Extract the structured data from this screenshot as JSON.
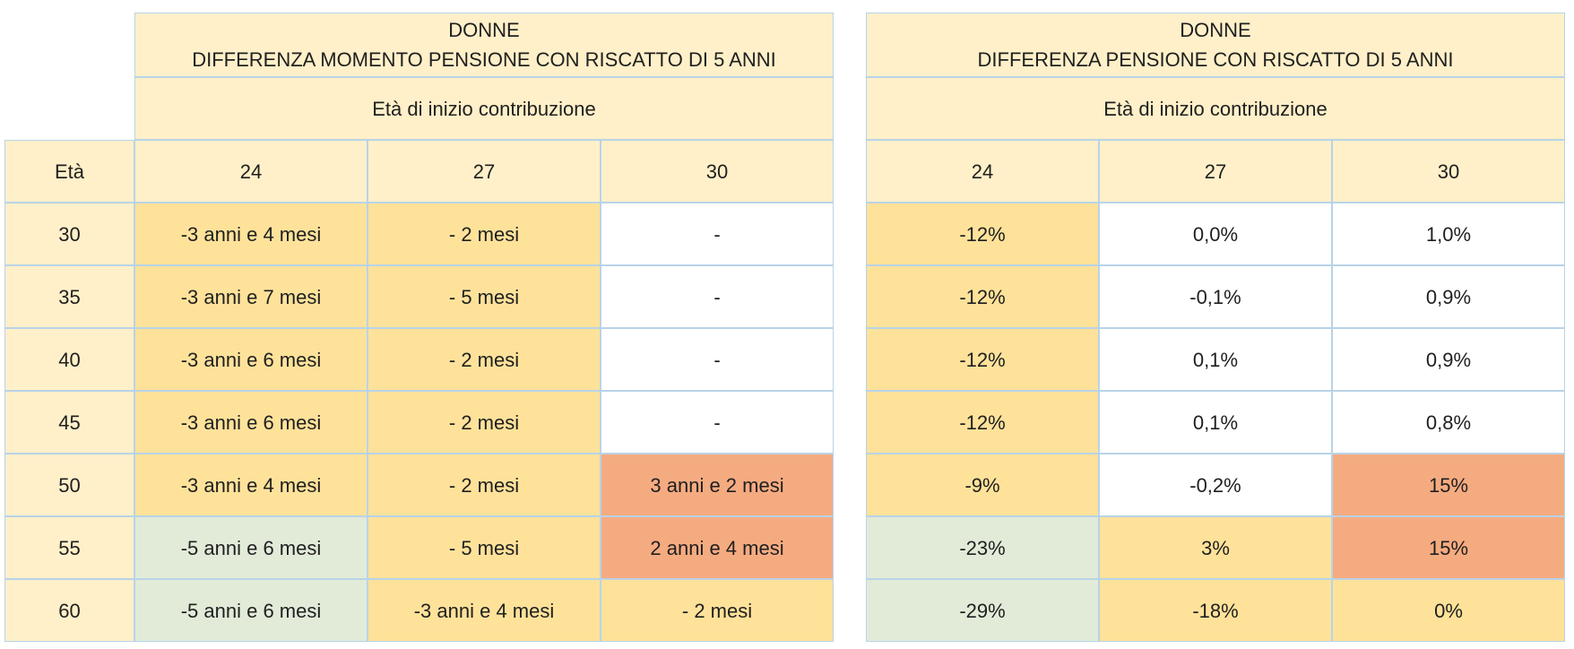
{
  "left_table": {
    "title": "DONNE\nDIFFERENZA MOMENTO PENSIONE CON RISCATTO DI 5 ANNI",
    "subtitle": "Età di inizio contribuzione",
    "age_header": "Età",
    "columns": [
      "24",
      "27",
      "30"
    ],
    "rows": [
      {
        "age": "30",
        "cells": [
          {
            "value": "-3 anni e 4 mesi",
            "color": "yellow"
          },
          {
            "value": "- 2 mesi",
            "color": "yellow"
          },
          {
            "value": "-",
            "color": "white"
          }
        ]
      },
      {
        "age": "35",
        "cells": [
          {
            "value": "-3 anni e 7 mesi",
            "color": "yellow"
          },
          {
            "value": "- 5 mesi",
            "color": "yellow"
          },
          {
            "value": "-",
            "color": "white"
          }
        ]
      },
      {
        "age": "40",
        "cells": [
          {
            "value": "-3 anni e 6 mesi",
            "color": "yellow"
          },
          {
            "value": "- 2 mesi",
            "color": "yellow"
          },
          {
            "value": "-",
            "color": "white"
          }
        ]
      },
      {
        "age": "45",
        "cells": [
          {
            "value": "-3 anni e 6 mesi",
            "color": "yellow"
          },
          {
            "value": "- 2 mesi",
            "color": "yellow"
          },
          {
            "value": "-",
            "color": "white"
          }
        ]
      },
      {
        "age": "50",
        "cells": [
          {
            "value": "-3 anni e 4 mesi",
            "color": "yellow"
          },
          {
            "value": "- 2 mesi",
            "color": "yellow"
          },
          {
            "value": "3 anni e 2 mesi",
            "color": "orange"
          }
        ]
      },
      {
        "age": "55",
        "cells": [
          {
            "value": "-5 anni e 6 mesi",
            "color": "green"
          },
          {
            "value": "- 5 mesi",
            "color": "yellow"
          },
          {
            "value": "2 anni e 4 mesi",
            "color": "orange"
          }
        ]
      },
      {
        "age": "60",
        "cells": [
          {
            "value": "-5 anni e 6 mesi",
            "color": "green"
          },
          {
            "value": "-3 anni e 4 mesi",
            "color": "yellow"
          },
          {
            "value": "- 2 mesi",
            "color": "yellow"
          }
        ]
      }
    ]
  },
  "right_table": {
    "title": "DONNE\nDIFFERENZA PENSIONE CON RISCATTO DI 5 ANNI",
    "subtitle": "Età di inizio contribuzione",
    "columns": [
      "24",
      "27",
      "30"
    ],
    "rows": [
      {
        "cells": [
          {
            "value": "-12%",
            "color": "yellow"
          },
          {
            "value": "0,0%",
            "color": "white"
          },
          {
            "value": "1,0%",
            "color": "white"
          }
        ]
      },
      {
        "cells": [
          {
            "value": "-12%",
            "color": "yellow"
          },
          {
            "value": "-0,1%",
            "color": "white"
          },
          {
            "value": "0,9%",
            "color": "white"
          }
        ]
      },
      {
        "cells": [
          {
            "value": "-12%",
            "color": "yellow"
          },
          {
            "value": "0,1%",
            "color": "white"
          },
          {
            "value": "0,9%",
            "color": "white"
          }
        ]
      },
      {
        "cells": [
          {
            "value": "-12%",
            "color": "yellow"
          },
          {
            "value": "0,1%",
            "color": "white"
          },
          {
            "value": "0,8%",
            "color": "white"
          }
        ]
      },
      {
        "cells": [
          {
            "value": "-9%",
            "color": "yellow"
          },
          {
            "value": "-0,2%",
            "color": "white"
          },
          {
            "value": "15%",
            "color": "orange"
          }
        ]
      },
      {
        "cells": [
          {
            "value": "-23%",
            "color": "green"
          },
          {
            "value": "3%",
            "color": "yellow"
          },
          {
            "value": "15%",
            "color": "orange"
          }
        ]
      },
      {
        "cells": [
          {
            "value": "-29%",
            "color": "green"
          },
          {
            "value": "-18%",
            "color": "yellow"
          },
          {
            "value": "0%",
            "color": "yellow"
          }
        ]
      }
    ]
  },
  "palette": {
    "header": "#fff0c9",
    "yellow": "#ffe29a",
    "white": "#ffffff",
    "orange": "#f5ab80",
    "green": "#e2ebd8",
    "border": "#b8d3e8"
  }
}
